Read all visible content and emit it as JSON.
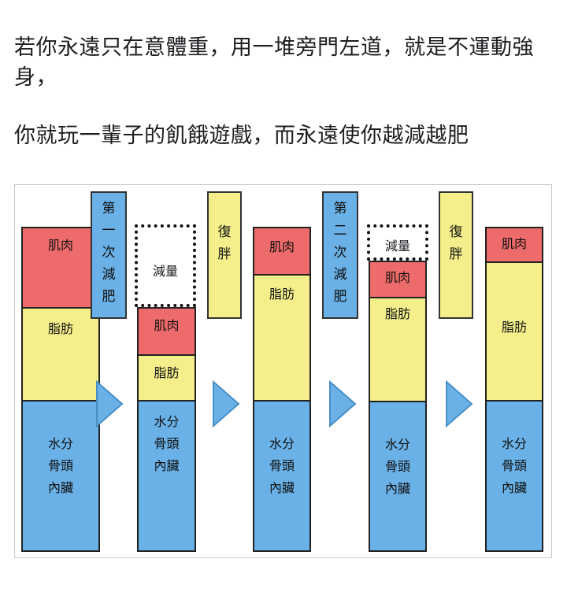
{
  "caption": {
    "line1": "若你永遠只在意體重，用一堆旁門左道，就是不運動強身，",
    "line2": "你就玩一輩子的飢餓遊戲，而永遠使你越減越肥"
  },
  "labels": {
    "muscle": "肌肉",
    "fat": "脂肪",
    "water": "水分\n骨頭\n內臟",
    "loss": "減量",
    "first_diet": "第\n一\n次\n減\n肥",
    "second_diet": "第\n二\n次\n減\n肥",
    "rebound": "復\n胖"
  },
  "colors": {
    "muscle": "#ee6b6b",
    "fat": "#f4ef8a",
    "water": "#6ab1e7",
    "arrow": "#6ab1e7"
  },
  "icons": [
    "triangle-arrow-icon"
  ]
}
